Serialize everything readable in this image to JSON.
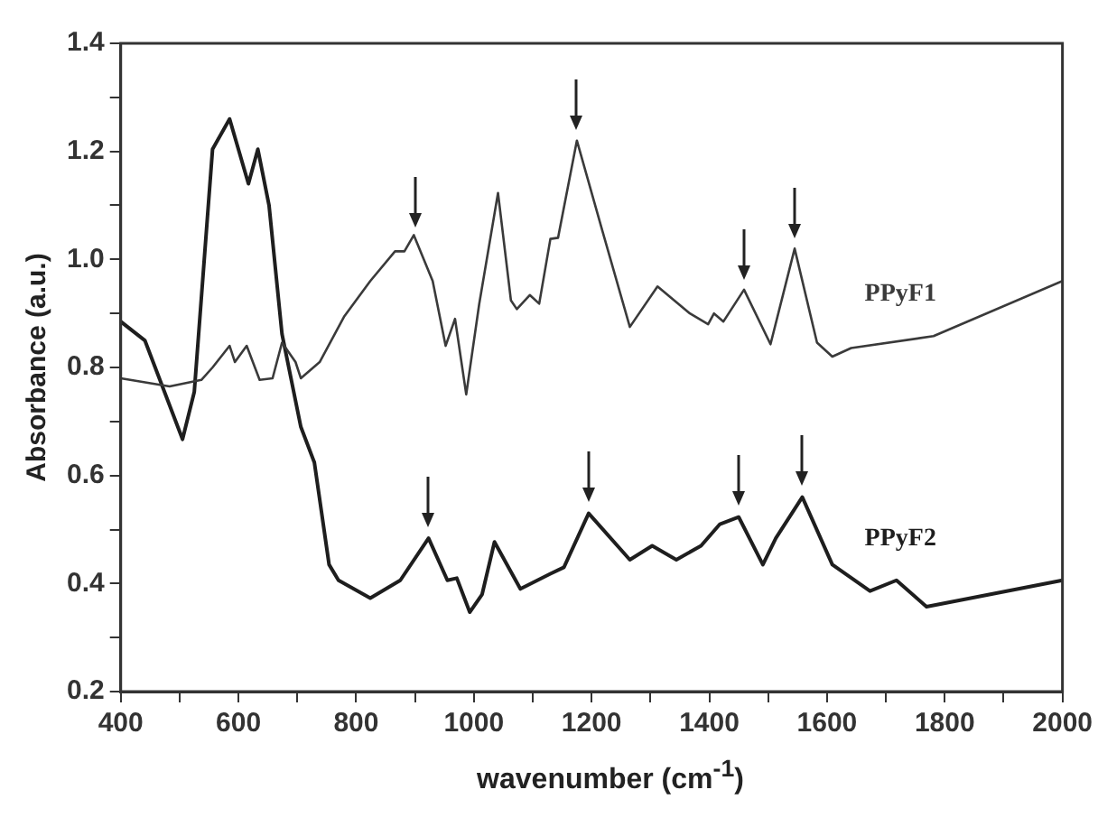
{
  "chart_data": {
    "type": "line",
    "xlabel": "wavenumber (cm$^{-1}$)",
    "ylabel": "Absorbance (a.u.)",
    "xlim": [
      400,
      2000
    ],
    "ylim": [
      0.2,
      1.4
    ],
    "xticks": [
      400,
      {
        "value": 500,
        "label": null
      },
      600,
      {
        "value": 700,
        "label": null
      },
      800,
      {
        "value": 900,
        "label": null
      },
      1000,
      {
        "value": 1100,
        "label": null
      },
      1200,
      {
        "value": 1300,
        "label": null
      },
      1400,
      {
        "value": 1500,
        "label": null
      },
      1600,
      {
        "value": 1700,
        "label": null
      },
      1800,
      {
        "value": 1900,
        "label": null
      },
      2000
    ],
    "yticks": [
      {
        "value": 0.2,
        "label": "0.2"
      },
      {
        "value": 0.3,
        "label": null
      },
      {
        "value": 0.4,
        "label": "0.4"
      },
      {
        "value": 0.5,
        "label": null
      },
      {
        "value": 0.6,
        "label": "0.6"
      },
      {
        "value": 0.7,
        "label": null
      },
      {
        "value": 0.8,
        "label": "0.8"
      },
      {
        "value": 0.9,
        "label": null
      },
      {
        "value": 1.0,
        "label": "1.0"
      },
      {
        "value": 1.1,
        "label": null
      },
      {
        "value": 1.2,
        "label": "1.2"
      },
      {
        "value": 1.3,
        "label": null
      },
      {
        "value": 1.4,
        "label": "1.4"
      }
    ],
    "grid": false,
    "legend": false,
    "marker": "none",
    "line_style": "solid",
    "series": [
      {
        "name": "PPyF1",
        "color": "#3a3a3a",
        "x": [
          400,
          483,
          537,
          556,
          585,
          594,
          614,
          636,
          658,
          674,
          697,
          706,
          738,
          780,
          824,
          866,
          882,
          898,
          930,
          952,
          968,
          987,
          1009,
          1041,
          1063,
          1073,
          1095,
          1111,
          1130,
          1143,
          1175,
          1217,
          1265,
          1312,
          1367,
          1398,
          1408,
          1424,
          1459,
          1504,
          1545,
          1583,
          1609,
          1641,
          1781,
          2000
        ],
        "values": [
          0.78,
          0.765,
          0.777,
          0.8,
          0.84,
          0.81,
          0.84,
          0.777,
          0.78,
          0.846,
          0.81,
          0.78,
          0.81,
          0.895,
          0.96,
          1.015,
          1.015,
          1.045,
          0.96,
          0.84,
          0.89,
          0.75,
          0.917,
          1.123,
          0.924,
          0.908,
          0.934,
          0.918,
          1.038,
          1.04,
          1.22,
          1.058,
          0.875,
          0.95,
          0.9,
          0.88,
          0.9,
          0.885,
          0.944,
          0.843,
          1.02,
          0.846,
          0.82,
          0.836,
          0.858,
          0.96
        ]
      },
      {
        "name": "PPyF2",
        "color": "#1e1e1e",
        "x": [
          400,
          441,
          505,
          525,
          556,
          585,
          617,
          633,
          652,
          674,
          706,
          729,
          754,
          770,
          824,
          875,
          923,
          955,
          971,
          993,
          1014,
          1035,
          1079,
          1130,
          1153,
          1195,
          1265,
          1303,
          1344,
          1386,
          1418,
          1450,
          1491,
          1513,
          1558,
          1609,
          1673,
          1718,
          1769,
          2000
        ],
        "values": [
          0.885,
          0.85,
          0.667,
          0.755,
          1.204,
          1.26,
          1.14,
          1.204,
          1.1,
          0.862,
          0.69,
          0.624,
          0.435,
          0.406,
          0.373,
          0.406,
          0.484,
          0.406,
          0.41,
          0.347,
          0.38,
          0.477,
          0.39,
          0.418,
          0.43,
          0.53,
          0.444,
          0.47,
          0.444,
          0.47,
          0.51,
          0.523,
          0.435,
          0.484,
          0.56,
          0.435,
          0.386,
          0.406,
          0.357,
          0.406
        ]
      }
    ]
  }
}
